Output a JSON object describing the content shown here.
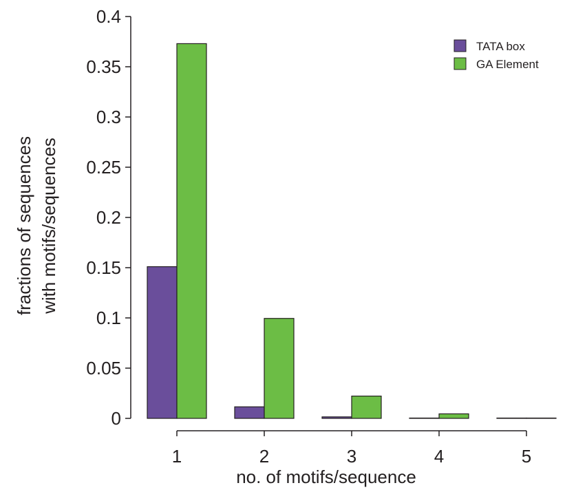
{
  "chart_data": {
    "type": "bar",
    "title": "",
    "xlabel": "no. of motifs/sequence",
    "ylabel_lines": [
      "fractions of sequences",
      "with motifs/sequences"
    ],
    "categories": [
      "1",
      "2",
      "3",
      "4",
      "5"
    ],
    "series": [
      {
        "name": "TATA box",
        "color": "#6a4e9b",
        "values": [
          0.151,
          0.0115,
          0.0015,
          0.0003,
          0.0002
        ]
      },
      {
        "name": "GA Element",
        "color": "#6cbd45",
        "values": [
          0.373,
          0.0995,
          0.0222,
          0.0045,
          0.0003
        ]
      }
    ],
    "ylim": [
      0,
      0.4
    ],
    "yticks": [
      "0",
      "0.05",
      "0.1",
      "0.15",
      "0.2",
      "0.25",
      "0.3",
      "0.35",
      "0.4"
    ],
    "grid": false,
    "legend_position": "top-right"
  }
}
